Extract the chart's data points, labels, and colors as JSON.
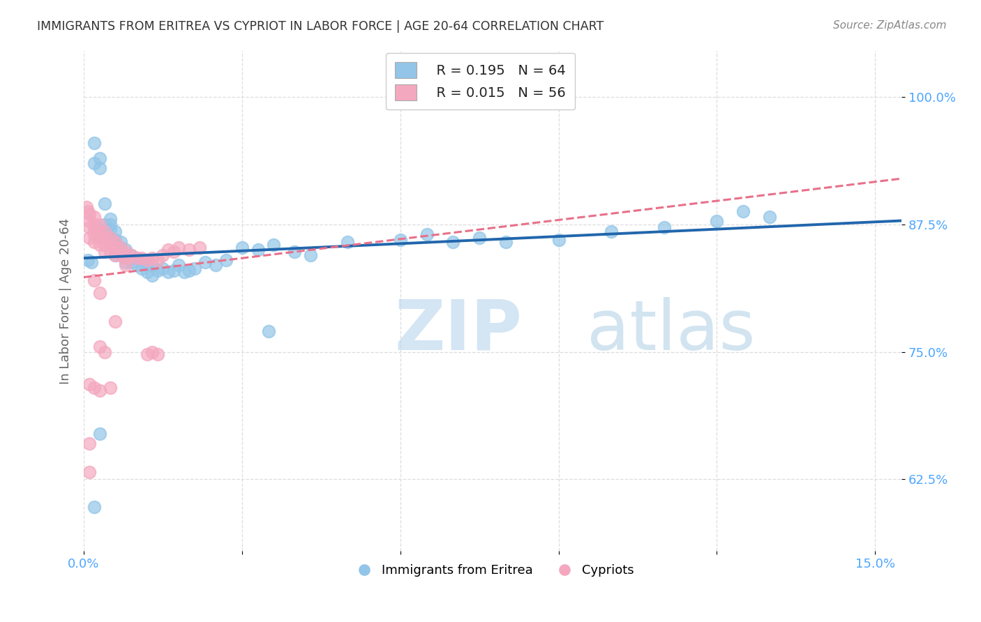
{
  "title": "IMMIGRANTS FROM ERITREA VS CYPRIOT IN LABOR FORCE | AGE 20-64 CORRELATION CHART",
  "source": "Source: ZipAtlas.com",
  "ylabel": "In Labor Force | Age 20-64",
  "xlim": [
    0.0,
    0.155
  ],
  "ylim": [
    0.555,
    1.045
  ],
  "ytick_positions": [
    0.625,
    0.75,
    0.875,
    1.0
  ],
  "ytick_labels": [
    "62.5%",
    "75.0%",
    "87.5%",
    "100.0%"
  ],
  "xtick_positions": [
    0.0,
    0.03,
    0.06,
    0.09,
    0.12,
    0.15
  ],
  "xtick_labels": [
    "0.0%",
    "",
    "",
    "",
    "",
    "15.0%"
  ],
  "legend_r1": "R = 0.195",
  "legend_n1": "N = 64",
  "legend_r2": "R = 0.015",
  "legend_n2": "N = 56",
  "blue_color": "#92c5e8",
  "pink_color": "#f4a8bf",
  "blue_line_color": "#2166ac",
  "pink_line_color": "#e8708a",
  "axis_tick_color": "#4da6ff",
  "watermark_zip": "ZIP",
  "watermark_atlas": "atlas",
  "blue_x": [
    0.0008,
    0.0015,
    0.002,
    0.002,
    0.003,
    0.003,
    0.003,
    0.004,
    0.004,
    0.005,
    0.005,
    0.005,
    0.005,
    0.006,
    0.006,
    0.006,
    0.006,
    0.007,
    0.007,
    0.007,
    0.008,
    0.008,
    0.008,
    0.009,
    0.009,
    0.01,
    0.01,
    0.011,
    0.011,
    0.012,
    0.012,
    0.013,
    0.013,
    0.014,
    0.015,
    0.016,
    0.017,
    0.018,
    0.019,
    0.02,
    0.021,
    0.023,
    0.025,
    0.027,
    0.03,
    0.033,
    0.036,
    0.04,
    0.043,
    0.05,
    0.06,
    0.065,
    0.07,
    0.075,
    0.08,
    0.09,
    0.1,
    0.11,
    0.12,
    0.13,
    0.002,
    0.003,
    0.035,
    0.125
  ],
  "blue_y": [
    0.84,
    0.838,
    0.955,
    0.935,
    0.94,
    0.93,
    0.87,
    0.895,
    0.875,
    0.88,
    0.875,
    0.87,
    0.862,
    0.868,
    0.86,
    0.855,
    0.845,
    0.858,
    0.852,
    0.845,
    0.85,
    0.843,
    0.838,
    0.845,
    0.838,
    0.842,
    0.835,
    0.84,
    0.832,
    0.838,
    0.828,
    0.835,
    0.825,
    0.83,
    0.832,
    0.828,
    0.83,
    0.835,
    0.828,
    0.83,
    0.832,
    0.838,
    0.835,
    0.84,
    0.852,
    0.85,
    0.855,
    0.848,
    0.845,
    0.858,
    0.86,
    0.865,
    0.858,
    0.862,
    0.858,
    0.86,
    0.868,
    0.872,
    0.878,
    0.882,
    0.598,
    0.67,
    0.77,
    0.888
  ],
  "pink_x": [
    0.0005,
    0.0008,
    0.001,
    0.001,
    0.001,
    0.001,
    0.002,
    0.002,
    0.002,
    0.002,
    0.002,
    0.003,
    0.003,
    0.003,
    0.003,
    0.004,
    0.004,
    0.004,
    0.004,
    0.005,
    0.005,
    0.005,
    0.006,
    0.006,
    0.006,
    0.007,
    0.007,
    0.008,
    0.008,
    0.009,
    0.01,
    0.011,
    0.012,
    0.013,
    0.014,
    0.015,
    0.016,
    0.017,
    0.018,
    0.02,
    0.022,
    0.001,
    0.002,
    0.003,
    0.004,
    0.005,
    0.006,
    0.001,
    0.002,
    0.003,
    0.003,
    0.001,
    0.013,
    0.014,
    0.008,
    0.012
  ],
  "pink_y": [
    0.892,
    0.888,
    0.885,
    0.878,
    0.872,
    0.862,
    0.882,
    0.875,
    0.87,
    0.865,
    0.858,
    0.875,
    0.868,
    0.862,
    0.855,
    0.868,
    0.862,
    0.855,
    0.848,
    0.862,
    0.855,
    0.848,
    0.858,
    0.852,
    0.845,
    0.852,
    0.845,
    0.848,
    0.842,
    0.845,
    0.842,
    0.842,
    0.84,
    0.842,
    0.84,
    0.845,
    0.85,
    0.848,
    0.852,
    0.85,
    0.852,
    0.718,
    0.82,
    0.808,
    0.75,
    0.715,
    0.78,
    0.66,
    0.715,
    0.755,
    0.712,
    0.632,
    0.75,
    0.748,
    0.835,
    0.748
  ]
}
